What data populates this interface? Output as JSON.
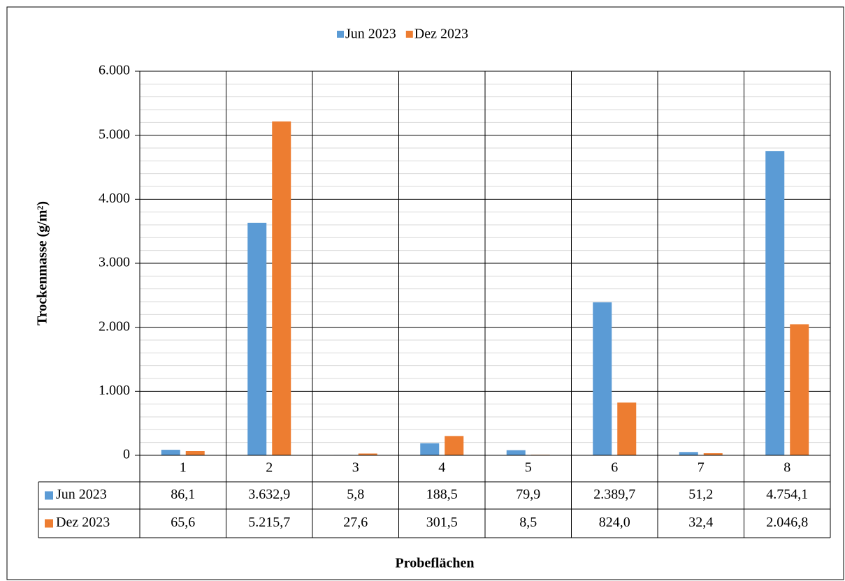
{
  "chart_data": {
    "type": "bar",
    "ylabel": "Trockenmasse (g/m²)",
    "xlabel": "Probeflächen",
    "categories": [
      "1",
      "2",
      "3",
      "4",
      "5",
      "6",
      "7",
      "8"
    ],
    "series": [
      {
        "name": "Jun 2023",
        "color": "#5b9bd5",
        "values": [
          86.1,
          3632.9,
          5.8,
          188.5,
          79.9,
          2389.7,
          51.2,
          4754.1
        ],
        "value_labels": [
          "86,1",
          "3.632,9",
          "5,8",
          "188,5",
          "79,9",
          "2.389,7",
          "51,2",
          "4.754,1"
        ]
      },
      {
        "name": "Dez 2023",
        "color": "#ed7d31",
        "values": [
          65.6,
          5215.7,
          27.6,
          301.5,
          8.5,
          824.0,
          32.4,
          2046.8
        ],
        "value_labels": [
          "65,6",
          "5.215,7",
          "27,6",
          "301,5",
          "8,5",
          "824,0",
          "32,4",
          "2.046,8"
        ]
      }
    ],
    "ylim": [
      0,
      6000
    ],
    "yticks": [
      0,
      {
        "value": 1000,
        "label": "1.000"
      },
      {
        "value": 2000,
        "label": "2.000"
      },
      {
        "value": 3000,
        "label": "3.000"
      },
      {
        "value": 4000,
        "label": "4.000"
      },
      {
        "value": 5000,
        "label": "5.000"
      },
      {
        "value": 6000,
        "label": "6.000"
      }
    ],
    "yminorticks": [
      200,
      400,
      600,
      800,
      1200,
      1400,
      1600,
      1800,
      2200,
      2400,
      2600,
      2800,
      3200,
      3400,
      3600,
      3800,
      4200,
      4400,
      4600,
      4800,
      5200,
      5400,
      5600,
      5800
    ],
    "grid": true,
    "legend": "top",
    "data_table": true
  }
}
